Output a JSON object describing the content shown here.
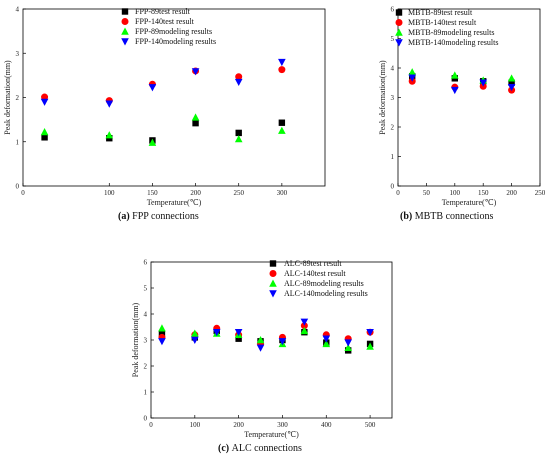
{
  "chart_data": [
    {
      "type": "scatter",
      "caption_letter": "(a)",
      "caption_text": " FPP connections",
      "xlabel": "Temperature(℃)",
      "ylabel": "Peak deformation(mm)",
      "xlim": [
        0,
        350
      ],
      "ylim": [
        0,
        4
      ],
      "xticks": [
        0,
        100,
        150,
        200,
        250,
        300
      ],
      "yticks": [
        0,
        1,
        2,
        3,
        4
      ],
      "legend_placement": "top-right",
      "series": [
        {
          "name": "FPP-89test result",
          "marker": "square",
          "color": "#000000",
          "x": [
            25,
            100,
            150,
            200,
            250,
            300
          ],
          "y": [
            1.1,
            1.08,
            1.03,
            1.42,
            1.2,
            1.43
          ]
        },
        {
          "name": "FPP-140test result",
          "marker": "circle",
          "color": "#ff0000",
          "x": [
            25,
            100,
            150,
            200,
            250,
            300
          ],
          "y": [
            2.01,
            1.93,
            2.3,
            2.6,
            2.47,
            2.63
          ]
        },
        {
          "name": "FPP-89modeling results",
          "marker": "triangle-up",
          "color": "#00ff00",
          "x": [
            25,
            100,
            150,
            200,
            250,
            300
          ],
          "y": [
            1.22,
            1.15,
            0.98,
            1.55,
            1.06,
            1.25
          ]
        },
        {
          "name": "FPP-140modeling results",
          "marker": "triangle-down",
          "color": "#0000ff",
          "x": [
            25,
            100,
            150,
            200,
            250,
            300
          ],
          "y": [
            1.9,
            1.86,
            2.23,
            2.59,
            2.35,
            2.8
          ]
        }
      ]
    },
    {
      "type": "scatter",
      "caption_letter": "(b)",
      "caption_text": " MBTB connections",
      "xlabel": "Temperature(℃)",
      "ylabel": "Peak deformation(mm)",
      "xlim": [
        0,
        250
      ],
      "ylim": [
        0,
        6
      ],
      "xticks": [
        0,
        50,
        100,
        150,
        200,
        250
      ],
      "yticks": [
        0,
        1,
        2,
        3,
        4,
        5,
        6
      ],
      "legend_placement": "top-right",
      "series": [
        {
          "name": "MBTB-89test result",
          "marker": "square",
          "color": "#000000",
          "x": [
            25,
            100,
            150,
            200
          ],
          "y": [
            3.72,
            3.65,
            3.55,
            3.5
          ]
        },
        {
          "name": "MBTB-140test result",
          "marker": "circle",
          "color": "#ff0000",
          "x": [
            25,
            100,
            150,
            200
          ],
          "y": [
            3.55,
            3.35,
            3.38,
            3.25
          ]
        },
        {
          "name": "MBTB-89modeling results",
          "marker": "triangle-up",
          "color": "#00ff00",
          "x": [
            25,
            100,
            150,
            200
          ],
          "y": [
            3.86,
            3.75,
            3.58,
            3.65
          ]
        },
        {
          "name": "MBTB-140modeling results",
          "marker": "triangle-down",
          "color": "#0000ff",
          "x": [
            25,
            100,
            150,
            200
          ],
          "y": [
            3.67,
            3.25,
            3.5,
            3.35
          ]
        }
      ]
    },
    {
      "type": "scatter",
      "caption_letter": "(c)",
      "caption_text": " ALC connections",
      "xlabel": "Temperature(℃)",
      "ylabel": "Peak deformation(mm)",
      "xlim": [
        0,
        550
      ],
      "ylim": [
        0,
        6
      ],
      "xticks": [
        0,
        100,
        200,
        300,
        400,
        500
      ],
      "yticks": [
        0,
        1,
        2,
        3,
        4,
        5,
        6
      ],
      "legend_placement": "top-right",
      "series": [
        {
          "name": "ALC-89test result",
          "marker": "square",
          "color": "#000000",
          "x": [
            25,
            100,
            150,
            200,
            250,
            300,
            350,
            400,
            450,
            500
          ],
          "y": [
            3.25,
            3.1,
            3.35,
            3.05,
            2.95,
            3.0,
            3.3,
            2.9,
            2.6,
            2.85
          ]
        },
        {
          "name": "ALC-140test result",
          "marker": "circle",
          "color": "#ff0000",
          "x": [
            25,
            100,
            150,
            200,
            250,
            300,
            350,
            400,
            450,
            500
          ],
          "y": [
            3.1,
            3.2,
            3.45,
            3.2,
            2.85,
            3.1,
            3.55,
            3.2,
            3.05,
            3.3
          ]
        },
        {
          "name": "ALC-89modeling results",
          "marker": "triangle-up",
          "color": "#00ff00",
          "x": [
            25,
            100,
            150,
            200,
            250,
            300,
            350,
            400,
            450,
            500
          ],
          "y": [
            3.45,
            3.25,
            3.25,
            3.2,
            3.0,
            2.85,
            3.35,
            2.85,
            2.7,
            2.75
          ]
        },
        {
          "name": "ALC-140modeling results",
          "marker": "triangle-down",
          "color": "#0000ff",
          "x": [
            25,
            100,
            150,
            200,
            250,
            300,
            350,
            400,
            450,
            500
          ],
          "y": [
            2.95,
            3.0,
            3.3,
            3.3,
            2.7,
            2.95,
            3.7,
            3.05,
            2.9,
            3.3
          ]
        }
      ]
    }
  ]
}
